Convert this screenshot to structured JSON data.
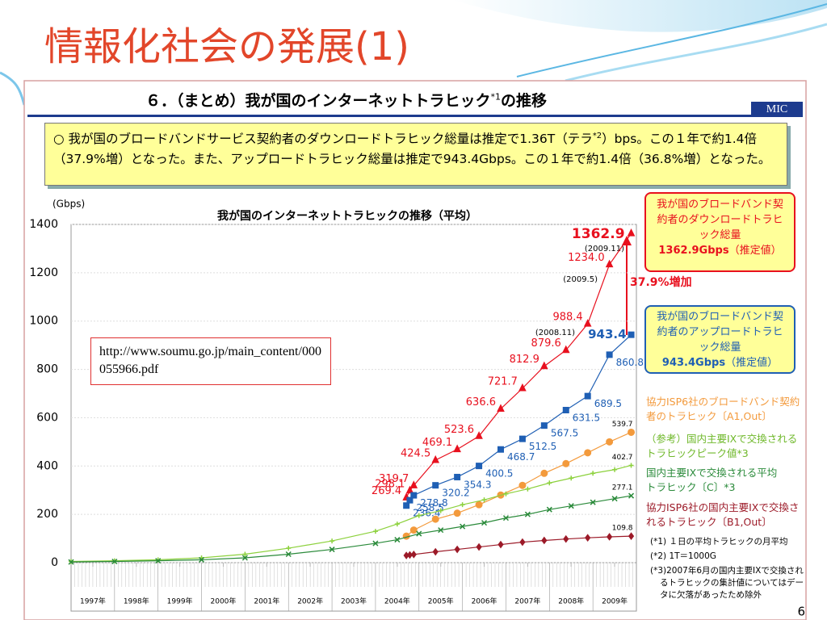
{
  "title": "情報化社会の発展(1)",
  "heading": {
    "main": "６．（まとめ）我が国のインターネットトラヒック",
    "sup": "*1",
    "end": "の推移"
  },
  "org": "MIC",
  "summary": {
    "before": "○ 我が国のブロードバンドサービス契約者のダウンロードトラヒック総量は推定で1.36T（テラ",
    "sup": "*2",
    "after": "）bps。この１年で約1.4倍（37.9%増）となった。また、アップロードトラヒック総量は推定で943.4Gbps。この１年で約1.4倍（36.8%増）となった。"
  },
  "url": "http://www.soumu.go.jp/main_content/000055966.pdf",
  "page": "6",
  "chart_data": {
    "type": "line",
    "title": "我が国のインターネットトラヒックの推移（平均）",
    "y_label": "(Gbps)",
    "xlim": [
      1997,
      2010
    ],
    "xticks": [
      {
        "value": 1997.5,
        "label": "1997年"
      },
      {
        "value": 1998.5,
        "label": "1998年"
      },
      {
        "value": 1999.5,
        "label": "1999年"
      },
      {
        "value": 2000.5,
        "label": "2000年"
      },
      {
        "value": 2001.5,
        "label": "2001年"
      },
      {
        "value": 2002.5,
        "label": "2002年"
      },
      {
        "value": 2003.5,
        "label": "2003年"
      },
      {
        "value": 2004.5,
        "label": "2004年"
      },
      {
        "value": 2005.5,
        "label": "2005年"
      },
      {
        "value": 2006.5,
        "label": "2006年"
      },
      {
        "value": 2007.5,
        "label": "2007年"
      },
      {
        "value": 2008.5,
        "label": "2008年"
      },
      {
        "value": 2009.5,
        "label": "2009年"
      }
    ],
    "ylim": [
      0,
      1400
    ],
    "yticks": [
      0,
      200,
      400,
      600,
      800,
      1000,
      1200,
      1400
    ],
    "grid": true,
    "series": [
      {
        "name": "我が国のブロードバンド契約者のダウンロードトラヒック総量",
        "callout_value": "1362.9Gbps",
        "callout_suffix": "（推定値）",
        "color": "#e8101e",
        "marker": "triangle",
        "x": [
          2004.71,
          2004.79,
          2004.88,
          2005.38,
          2005.88,
          2006.38,
          2006.88,
          2007.38,
          2007.88,
          2008.38,
          2008.88,
          2009.38,
          2009.88
        ],
        "values": [
          269.4,
          298.1,
          319.7,
          424.5,
          469.1,
          523.6,
          636.6,
          721.7,
          812.9,
          879.6,
          988.4,
          1234,
          1362.9
        ],
        "value_labels": [
          "269.4",
          "298.1",
          "319.7",
          "424.5",
          "469.1",
          "523.6",
          "636.6",
          "721.7",
          "812.9",
          "879.6",
          "988.4",
          "1234.0",
          "1362.9"
        ]
      },
      {
        "name": "我が国のブロードバンド契約者のアップロードトラヒック総量",
        "callout_value": "943.4Gbps",
        "callout_suffix": "（推定値）",
        "color": "#1f5fb4",
        "marker": "square",
        "x": [
          2004.71,
          2004.79,
          2004.88,
          2005.38,
          2005.88,
          2006.38,
          2006.88,
          2007.38,
          2007.88,
          2008.38,
          2008.88,
          2009.38,
          2009.88
        ],
        "values": [
          236.4,
          258.5,
          278.8,
          320.2,
          354.3,
          400.5,
          468.7,
          512.5,
          567.5,
          631.5,
          689.5,
          860.8,
          943.4
        ],
        "value_labels": [
          "236.4",
          "258.5",
          "278.8",
          "320.2",
          "354.3",
          "400.5",
          "468.7",
          "512.5",
          "567.5",
          "631.5",
          "689.5",
          "860.8",
          "943.4"
        ]
      },
      {
        "name": "協力ISP6社のブロードバンド契約者のトラヒック〔A1,Out〕",
        "color": "#f39a3c",
        "marker": "circle",
        "x": [
          2004.71,
          2004.88,
          2005.38,
          2005.88,
          2006.38,
          2006.88,
          2007.38,
          2007.88,
          2008.38,
          2008.88,
          2009.38,
          2009.88
        ],
        "values": [
          110,
          135,
          180,
          205,
          240,
          280,
          320,
          370,
          410,
          455,
          500,
          539.7
        ],
        "value_labels": [
          null,
          null,
          null,
          null,
          null,
          null,
          null,
          null,
          null,
          null,
          null,
          "539.7"
        ]
      },
      {
        "name": "（参考）国内主要IXで交換されるトラヒックピーク値*3",
        "color": "#8cd13c",
        "marker": "cross",
        "x": [
          1997,
          1998,
          1999,
          2000,
          2001,
          2002,
          2003,
          2004,
          2004.5,
          2005,
          2005.5,
          2006,
          2006.5,
          2007,
          2007.5,
          2008,
          2008.5,
          2009,
          2009.5,
          2009.88
        ],
        "values": [
          5,
          8,
          12,
          20,
          35,
          60,
          90,
          130,
          160,
          195,
          215,
          240,
          260,
          285,
          305,
          330,
          350,
          370,
          385,
          402.7
        ],
        "value_labels": [
          null,
          null,
          null,
          null,
          null,
          null,
          null,
          null,
          null,
          null,
          null,
          null,
          null,
          null,
          null,
          null,
          null,
          null,
          null,
          "402.7"
        ]
      },
      {
        "name": "国内主要IXで交換される平均トラヒック〔C〕*3",
        "color": "#2a8a3a",
        "marker": "x",
        "x": [
          1997,
          1998,
          1999,
          2000,
          2001,
          2002,
          2003,
          2004,
          2004.5,
          2005,
          2005.5,
          2006,
          2006.5,
          2007,
          2007.5,
          2008,
          2008.5,
          2009,
          2009.5,
          2009.88
        ],
        "values": [
          3,
          5,
          8,
          12,
          20,
          35,
          55,
          80,
          95,
          120,
          135,
          150,
          165,
          185,
          200,
          220,
          235,
          250,
          265,
          277.1
        ],
        "value_labels": [
          null,
          null,
          null,
          null,
          null,
          null,
          null,
          null,
          null,
          null,
          null,
          null,
          null,
          null,
          null,
          null,
          null,
          null,
          null,
          "277.1"
        ]
      },
      {
        "name": "協力ISP6社の国内主要IXで交換されるトラヒック〔B1,Out〕",
        "color": "#9c1a28",
        "marker": "diamond",
        "x": [
          2004.71,
          2004.79,
          2004.88,
          2005.38,
          2005.88,
          2006.38,
          2006.88,
          2007.38,
          2007.88,
          2008.38,
          2008.88,
          2009.38,
          2009.88
        ],
        "values": [
          30,
          32,
          34,
          45,
          55,
          65,
          75,
          85,
          92,
          98,
          103,
          107,
          109.8
        ],
        "value_labels": [
          null,
          null,
          null,
          null,
          null,
          null,
          null,
          null,
          null,
          null,
          null,
          null,
          "109.8"
        ]
      }
    ],
    "annotations": [
      "(2009.11)",
      "(2009.5)",
      "(2008.11)",
      "37.9%増加"
    ],
    "notes": [
      "(*1) １日の平均トラヒックの月平均",
      "(*2) 1T＝1000G",
      "(*3)2007年6月の国内主要IXで交換されるトラヒックの集計値についてはデータに欠落があったため除外"
    ]
  }
}
